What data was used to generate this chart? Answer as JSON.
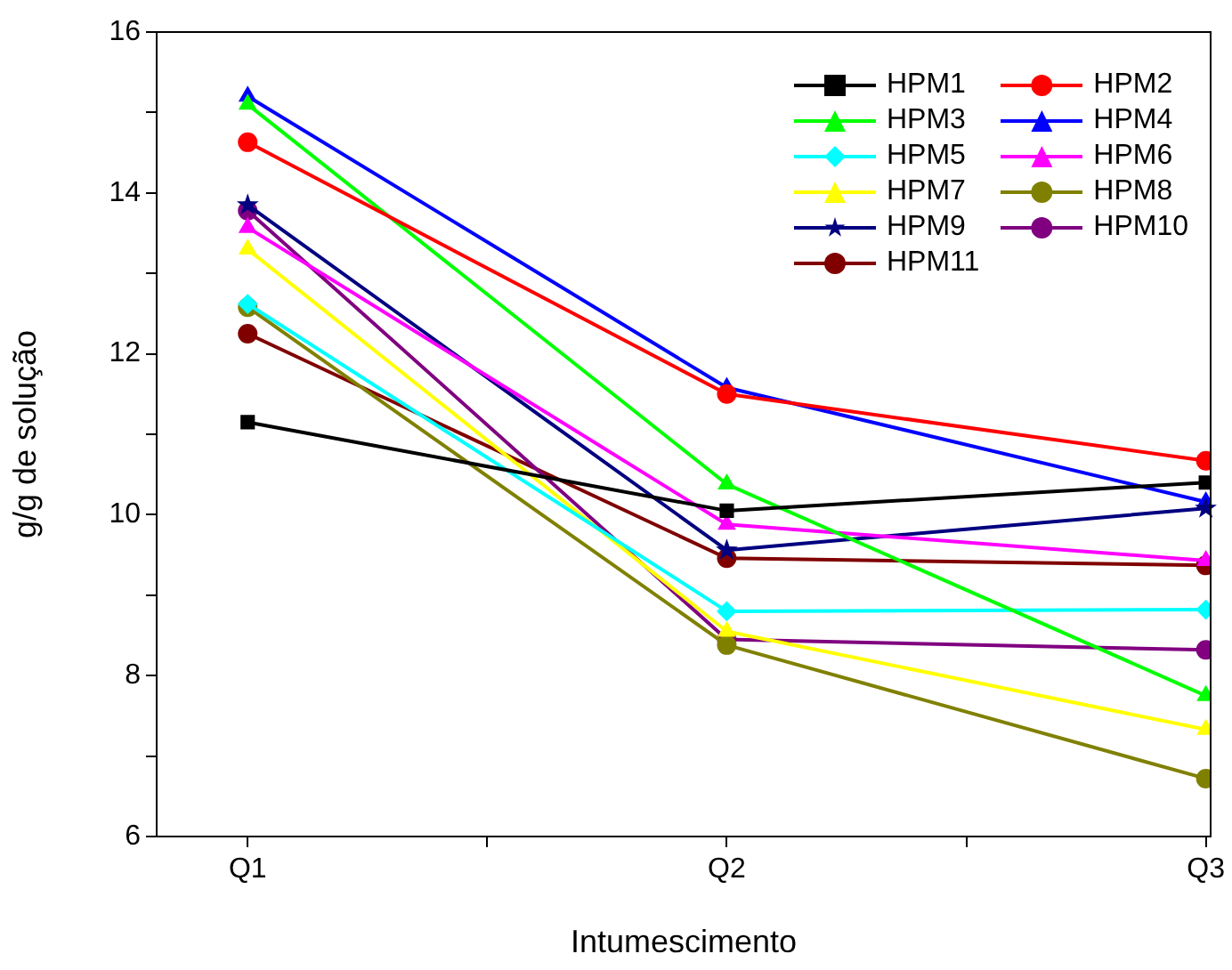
{
  "chart_data": {
    "type": "line",
    "xlabel": "Intumescimento",
    "ylabel": "g/g de solução",
    "categories": [
      "Q1",
      "Q2",
      "Q3"
    ],
    "ylim": [
      6,
      16
    ],
    "yticks": [
      6,
      {
        "value": 7,
        "label": null
      },
      8,
      {
        "value": 9,
        "label": null
      },
      10,
      {
        "value": 11,
        "label": null
      },
      12,
      {
        "value": 13,
        "label": null
      },
      14,
      {
        "value": 15,
        "label": null
      },
      16
    ],
    "grid": false,
    "legend": "top right",
    "line_style": "solid",
    "series": [
      {
        "name": "HPM1",
        "color": "#000000",
        "marker": "square",
        "values": [
          11.15,
          10.05,
          10.4
        ]
      },
      {
        "name": "HPM2",
        "color": "#ff0000",
        "marker": "circle",
        "values": [
          14.63,
          11.5,
          10.67
        ]
      },
      {
        "name": "HPM3",
        "color": "#00ff00",
        "marker": "triangle",
        "values": [
          15.1,
          10.38,
          7.75
        ]
      },
      {
        "name": "HPM4",
        "color": "#0000ff",
        "marker": "triangle",
        "values": [
          15.2,
          11.58,
          10.16
        ]
      },
      {
        "name": "HPM5",
        "color": "#00ffff",
        "marker": "diamond",
        "values": [
          12.62,
          8.8,
          8.82
        ]
      },
      {
        "name": "HPM6",
        "color": "#ff00ff",
        "marker": "triangle",
        "values": [
          13.57,
          9.88,
          9.43
        ]
      },
      {
        "name": "HPM7",
        "color": "#ffff00",
        "marker": "triangle",
        "values": [
          13.3,
          8.55,
          7.33
        ]
      },
      {
        "name": "HPM8",
        "color": "#808000",
        "marker": "circle",
        "values": [
          12.58,
          8.38,
          6.72
        ]
      },
      {
        "name": "HPM9",
        "color": "#000080",
        "marker": "star",
        "values": [
          13.85,
          9.56,
          10.08
        ]
      },
      {
        "name": "HPM10",
        "color": "#800080",
        "marker": "circle",
        "values": [
          13.78,
          8.45,
          8.32
        ]
      },
      {
        "name": "HPM11",
        "color": "#800000",
        "marker": "circle",
        "values": [
          12.25,
          9.46,
          9.37
        ]
      }
    ]
  }
}
